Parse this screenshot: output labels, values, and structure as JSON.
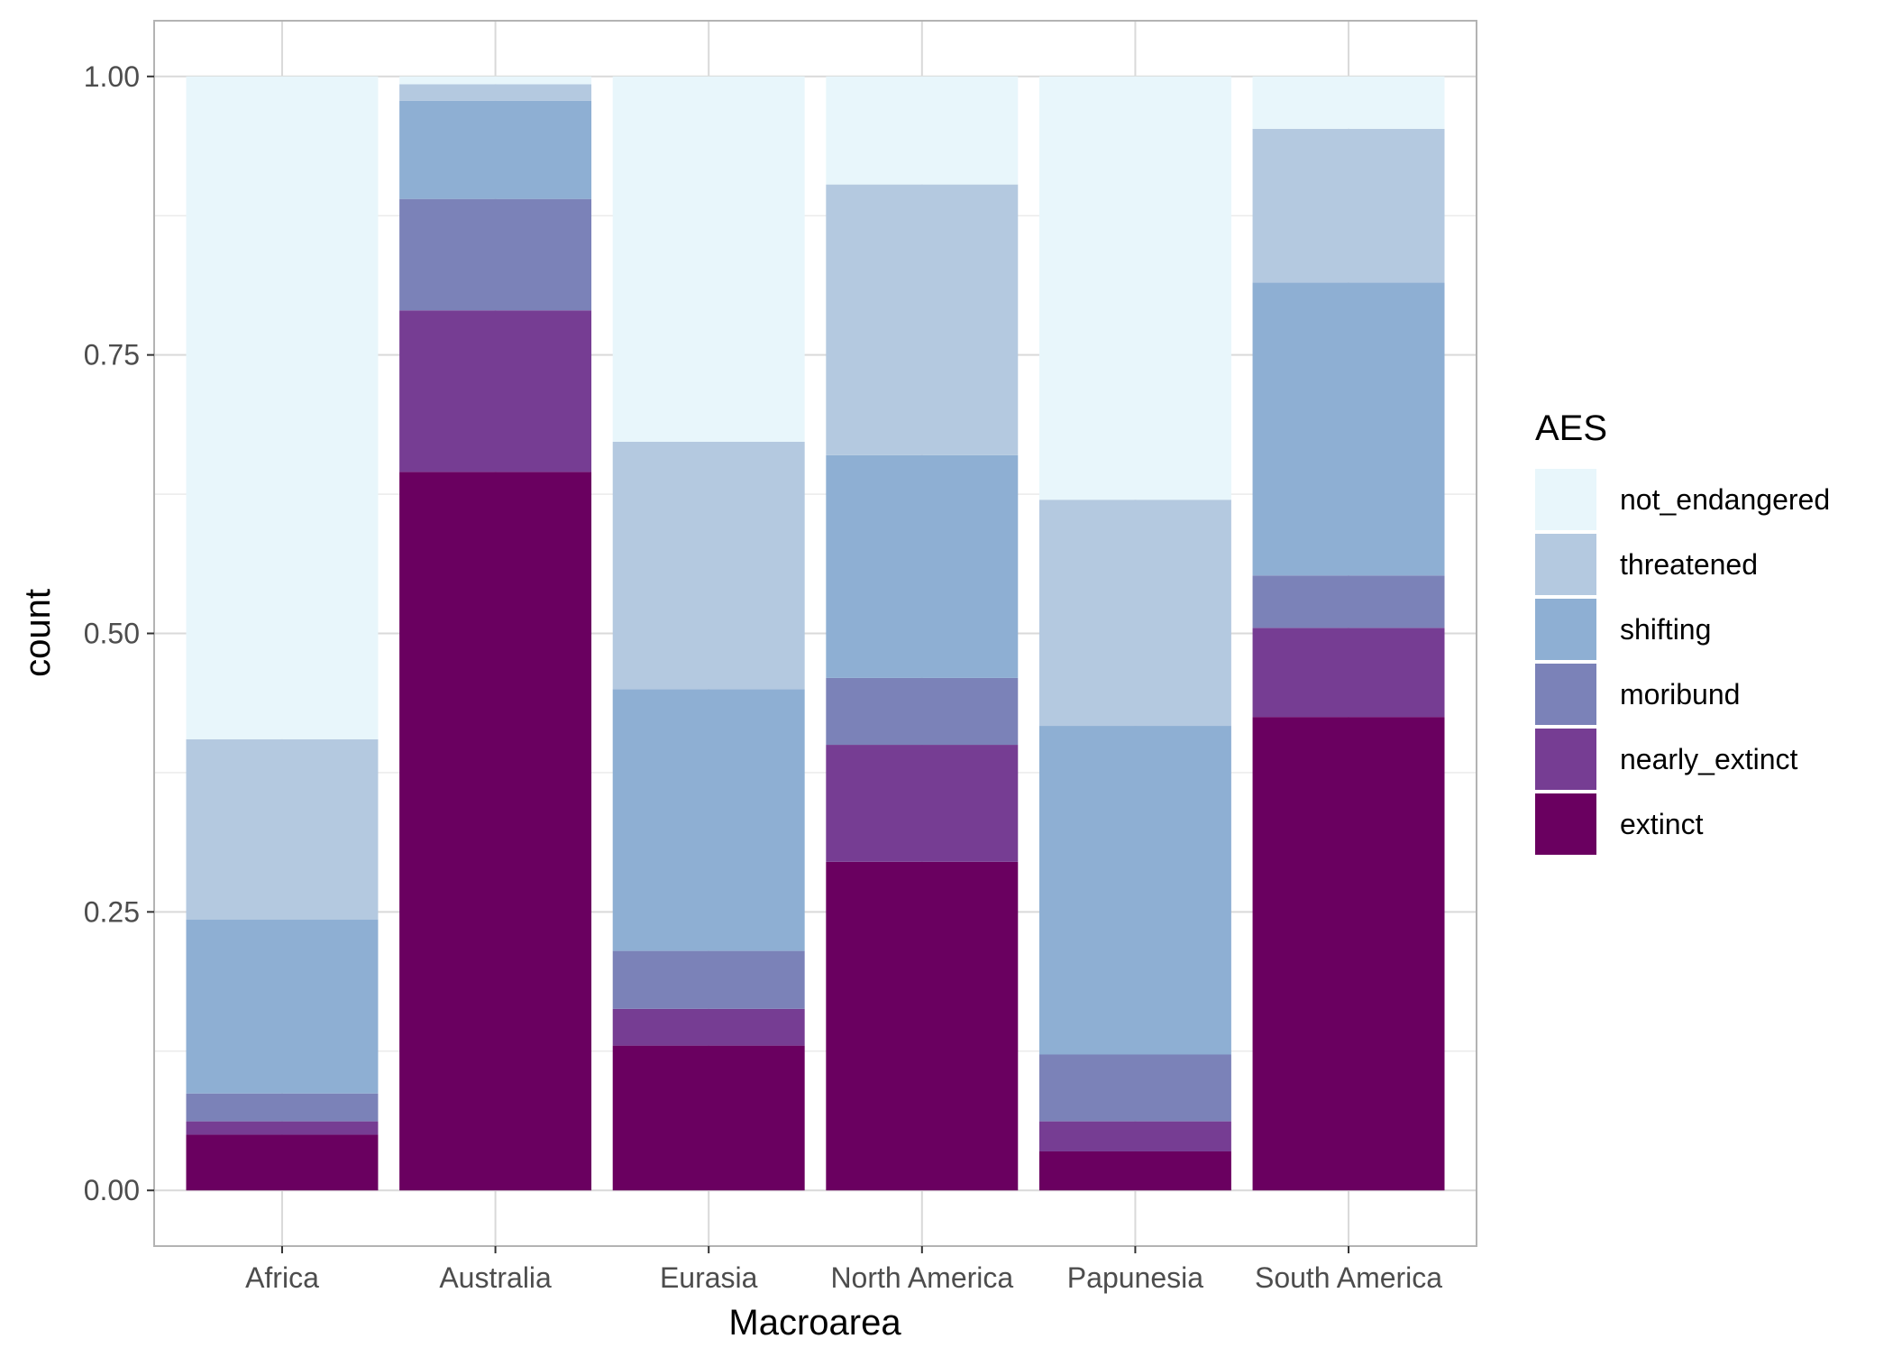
{
  "chart_data": {
    "type": "bar",
    "stacked": true,
    "position": "fill",
    "categories": [
      "Africa",
      "Australia",
      "Eurasia",
      "North America",
      "Papunesia",
      "South America"
    ],
    "series": [
      {
        "name": "extinct",
        "color": "#6a0060",
        "values": [
          0.05,
          0.645,
          0.13,
          0.295,
          0.035,
          0.425
        ]
      },
      {
        "name": "nearly_extinct",
        "color": "#763d93",
        "values": [
          0.012,
          0.145,
          0.033,
          0.105,
          0.027,
          0.08
        ]
      },
      {
        "name": "moribund",
        "color": "#7b82b8",
        "values": [
          0.025,
          0.1,
          0.052,
          0.06,
          0.06,
          0.047
        ]
      },
      {
        "name": "shifting",
        "color": "#8eafd3",
        "values": [
          0.156,
          0.088,
          0.235,
          0.2,
          0.295,
          0.263
        ]
      },
      {
        "name": "threatened",
        "color": "#b4c9e0",
        "values": [
          0.162,
          0.015,
          0.222,
          0.243,
          0.203,
          0.138
        ]
      },
      {
        "name": "not_endangered",
        "color": "#e8f6fb",
        "values": [
          0.595,
          0.007,
          0.328,
          0.097,
          0.38,
          0.047
        ]
      }
    ],
    "xlabel": "Macroarea",
    "ylabel": "count",
    "ylim": [
      -0.05,
      1.05
    ],
    "yticks": [
      0,
      0.25,
      0.5,
      0.75,
      1
    ],
    "ytick_labels": [
      "0.00",
      "0.25",
      "0.50",
      "0.75",
      "1.00"
    ],
    "grid": true,
    "legend": {
      "title": "AES",
      "position": "right",
      "order": [
        "not_endangered",
        "threatened",
        "shifting",
        "moribund",
        "nearly_extinct",
        "extinct"
      ]
    }
  }
}
